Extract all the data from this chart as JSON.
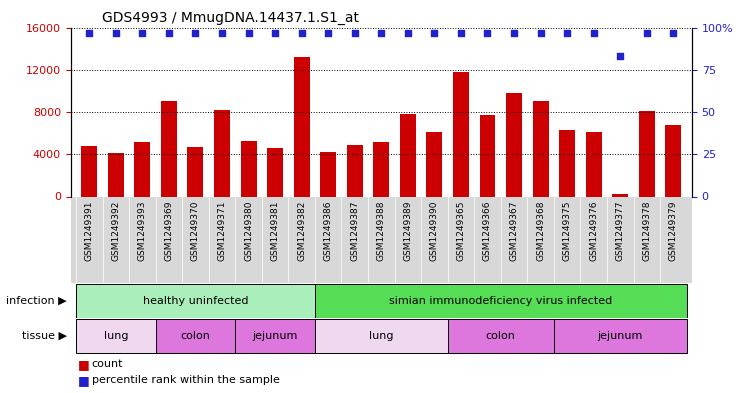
{
  "title": "GDS4993 / MmugDNA.14437.1.S1_at",
  "samples": [
    "GSM1249391",
    "GSM1249392",
    "GSM1249393",
    "GSM1249369",
    "GSM1249370",
    "GSM1249371",
    "GSM1249380",
    "GSM1249381",
    "GSM1249382",
    "GSM1249386",
    "GSM1249387",
    "GSM1249388",
    "GSM1249389",
    "GSM1249390",
    "GSM1249365",
    "GSM1249366",
    "GSM1249367",
    "GSM1249368",
    "GSM1249375",
    "GSM1249376",
    "GSM1249377",
    "GSM1249378",
    "GSM1249379"
  ],
  "counts": [
    4800,
    4100,
    5200,
    9000,
    4700,
    8200,
    5300,
    4600,
    13200,
    4200,
    4900,
    5200,
    7800,
    6100,
    11800,
    7700,
    9800,
    9000,
    6300,
    6100,
    200,
    8100,
    6800
  ],
  "percentile_ranks": [
    97,
    97,
    97,
    97,
    97,
    97,
    97,
    97,
    97,
    97,
    97,
    97,
    97,
    97,
    97,
    97,
    97,
    97,
    97,
    97,
    83,
    97,
    97
  ],
  "bar_color": "#cc0000",
  "dot_color": "#2222cc",
  "ylim_left": [
    0,
    16000
  ],
  "ylim_right": [
    0,
    100
  ],
  "yticks_left": [
    0,
    4000,
    8000,
    12000,
    16000
  ],
  "yticks_right": [
    0,
    25,
    50,
    75,
    100
  ],
  "ytick_labels_right": [
    "0",
    "25",
    "50",
    "75",
    "100%"
  ],
  "infection_groups": [
    {
      "label": "healthy uninfected",
      "start": 0,
      "end": 8,
      "color": "#aaeebb"
    },
    {
      "label": "simian immunodeficiency virus infected",
      "start": 9,
      "end": 22,
      "color": "#55dd55"
    }
  ],
  "tissue_groups": [
    {
      "label": "lung",
      "start": 0,
      "end": 2,
      "color": "#f0d8f0"
    },
    {
      "label": "colon",
      "start": 3,
      "end": 5,
      "color": "#dd77dd"
    },
    {
      "label": "jejunum",
      "start": 6,
      "end": 8,
      "color": "#dd77dd"
    },
    {
      "label": "lung",
      "start": 9,
      "end": 13,
      "color": "#f0d8f0"
    },
    {
      "label": "colon",
      "start": 14,
      "end": 17,
      "color": "#dd77dd"
    },
    {
      "label": "jejunum",
      "start": 18,
      "end": 22,
      "color": "#dd77dd"
    }
  ],
  "xtick_bg": "#d8d8d8",
  "legend_count_label": "count",
  "legend_pct_label": "percentile rank within the sample",
  "infection_label": "infection",
  "tissue_label": "tissue",
  "plot_bg": "#ffffff"
}
